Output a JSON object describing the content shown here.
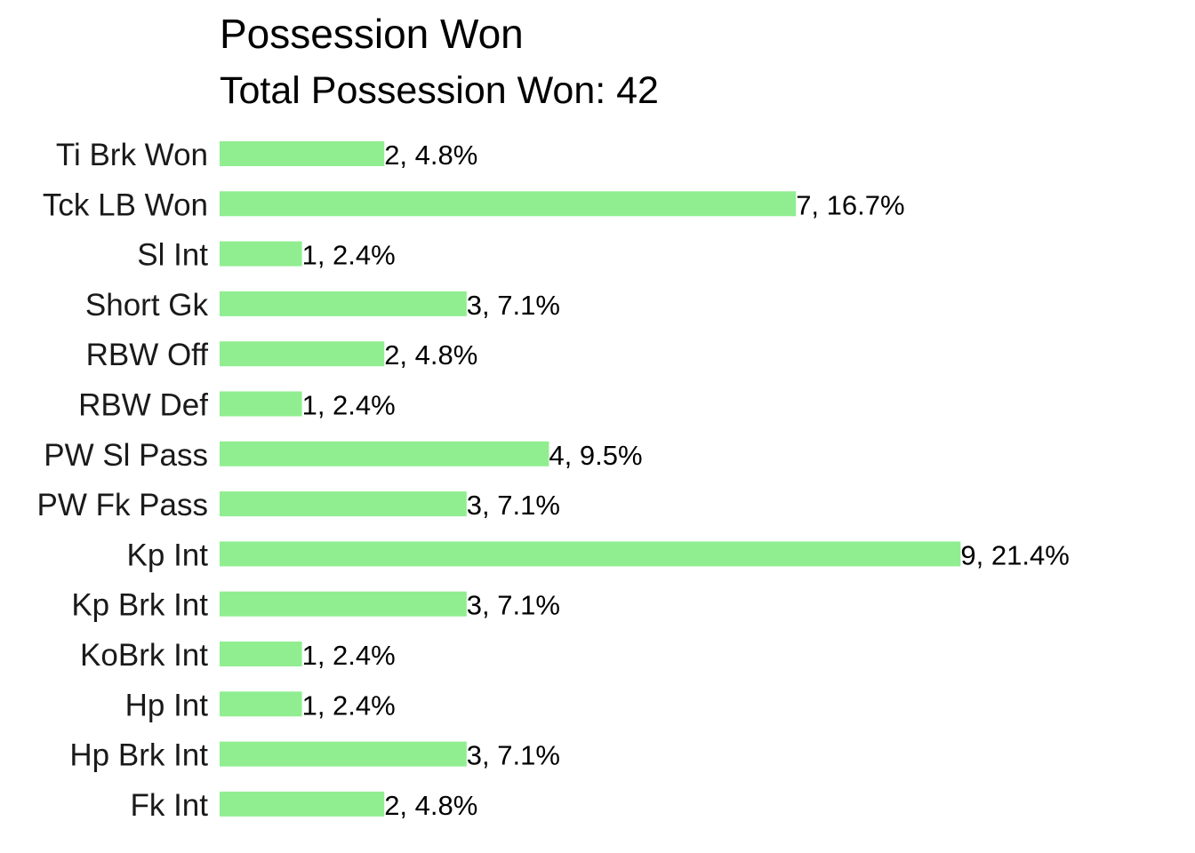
{
  "chart_data": {
    "type": "bar",
    "orientation": "horizontal",
    "title": "Possession Won",
    "subtitle": "Total Possession Won: 42",
    "xlabel": "",
    "ylabel": "",
    "grid": false,
    "legend": "none",
    "bar_color": "#90ee90",
    "xlim": [
      0,
      9
    ],
    "categories": [
      "Ti Brk Won",
      "Tck LB Won",
      "Sl Int",
      "Short Gk",
      "RBW Off",
      "RBW Def",
      "PW Sl Pass",
      "PW Fk Pass",
      "Kp Int",
      "Kp Brk Int",
      "KoBrk Int",
      "Hp Int",
      "Hp Brk Int",
      "Fk Int"
    ],
    "values": [
      2,
      7,
      1,
      3,
      2,
      1,
      4,
      3,
      9,
      3,
      1,
      1,
      3,
      2
    ],
    "data_labels": [
      "2, 4.8%",
      "7, 16.7%",
      "1, 2.4%",
      "3, 7.1%",
      "2, 4.8%",
      "1, 2.4%",
      "4, 9.5%",
      "3, 7.1%",
      "9, 21.4%",
      "3, 7.1%",
      "1, 2.4%",
      "1, 2.4%",
      "3, 7.1%",
      "2, 4.8%"
    ]
  }
}
